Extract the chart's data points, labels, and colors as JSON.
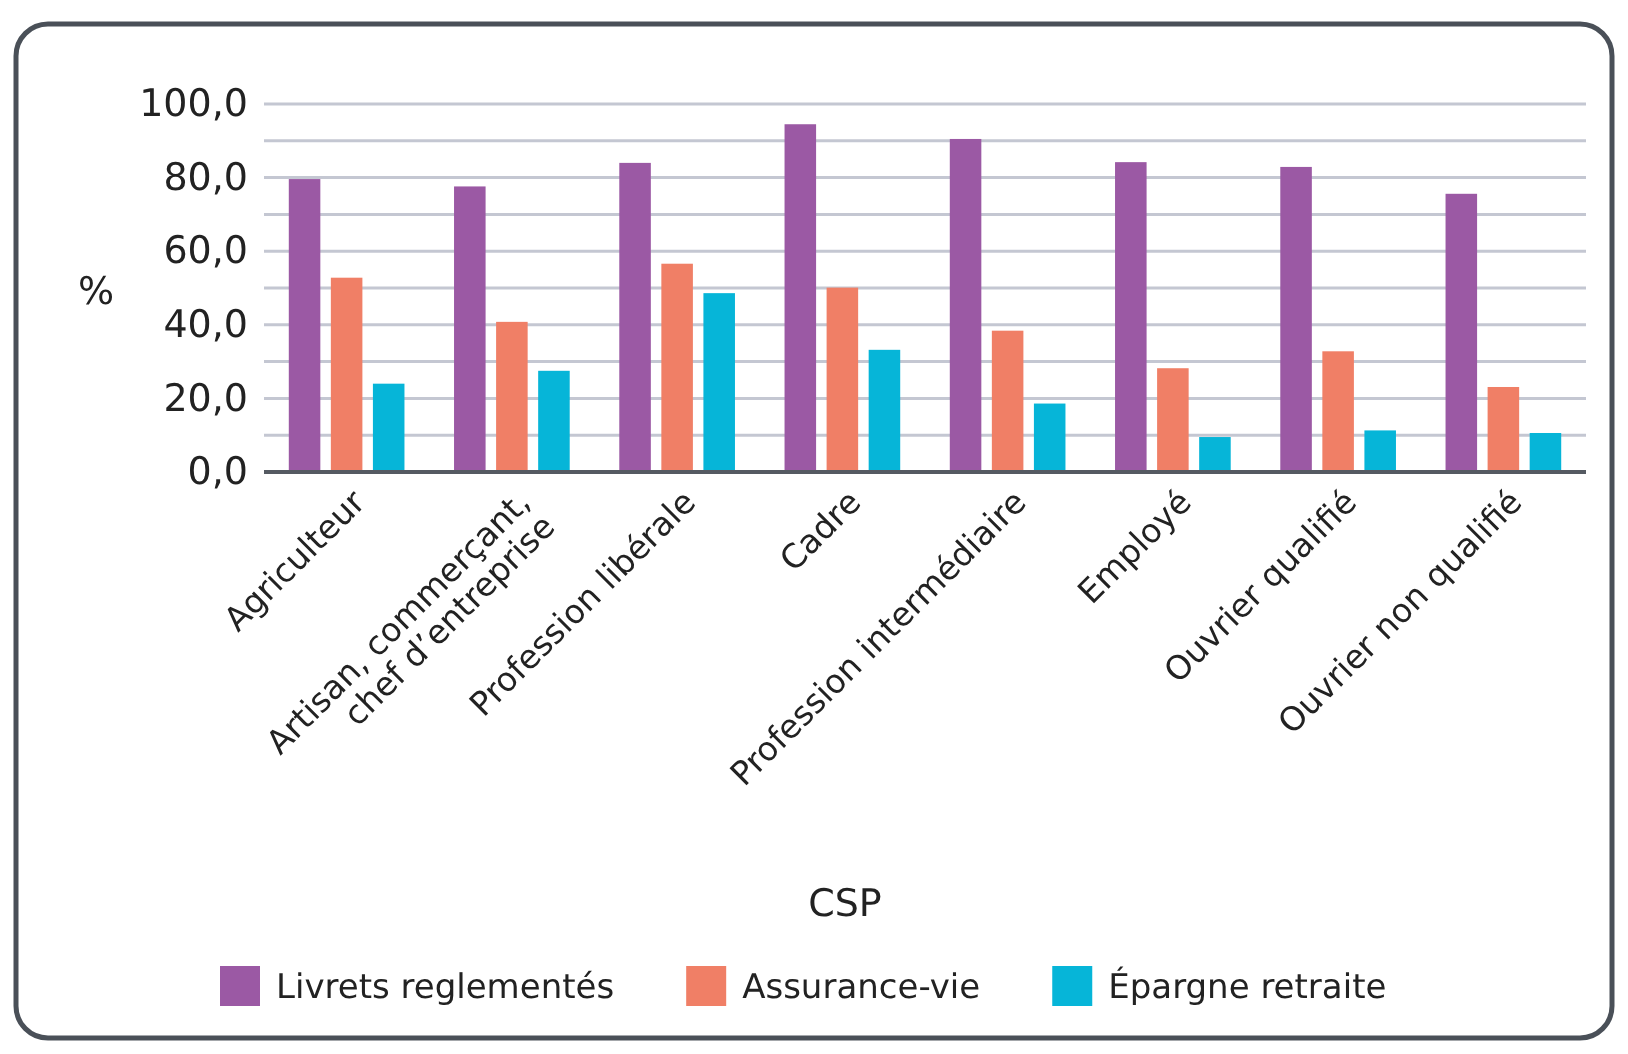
{
  "chart_data": {
    "type": "bar",
    "xlabel": "CSP",
    "ylabel": "%",
    "categories": [
      "Agriculteur",
      "Artisan, commerçant, chef d’entreprise",
      "Profession libérale",
      "Cadre",
      "Profession intermédiaire",
      "Employé",
      "Ouvrier qualifié",
      "Ouvrier non qualifié"
    ],
    "series": [
      {
        "name": "Livrets reglementés",
        "color": "#9b59a4",
        "values": [
          79.6,
          77.6,
          84.0,
          94.5,
          90.5,
          84.2,
          82.9,
          75.6
        ]
      },
      {
        "name": "Assurance-vie",
        "color": "#f07f66",
        "values": [
          52.8,
          40.8,
          56.6,
          50.1,
          38.4,
          28.2,
          32.8,
          23.1
        ]
      },
      {
        "name": "Épargne retraite",
        "color": "#06b5d8",
        "values": [
          24.0,
          27.5,
          48.6,
          33.2,
          18.6,
          9.5,
          11.3,
          10.6
        ]
      }
    ],
    "ylim": [
      0,
      100
    ],
    "yticks": [
      {
        "value": 0,
        "label": "0,0"
      },
      {
        "value": 10,
        "label": null
      },
      {
        "value": 20,
        "label": "20,0"
      },
      {
        "value": 30,
        "label": null
      },
      {
        "value": 40,
        "label": "40,0"
      },
      {
        "value": 50,
        "label": null
      },
      {
        "value": 60,
        "label": "60,0"
      },
      {
        "value": 70,
        "label": null
      },
      {
        "value": 80,
        "label": "80,0"
      },
      {
        "value": 90,
        "label": null
      },
      {
        "value": 100,
        "label": "100,0"
      }
    ],
    "grid": "y",
    "legend": "bottom"
  }
}
